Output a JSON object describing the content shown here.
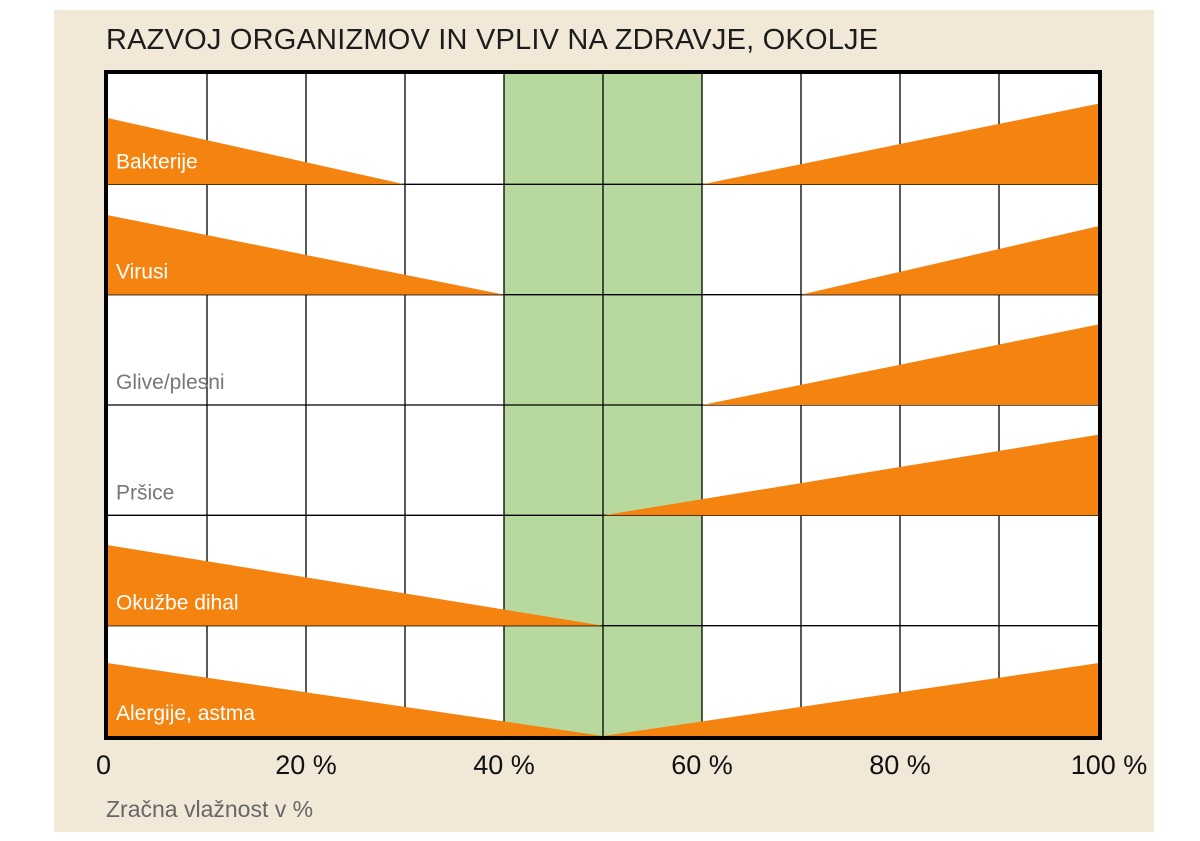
{
  "title": "RAZVOJ ORGANIZMOV IN VPLIV NA ZDRAVJE, OKOLJE",
  "xlabel": "Zračna vlažnost v %",
  "colors": {
    "background": "#f2e8d8",
    "optimal_zone": "#b7d99e",
    "impact": "#f5830f",
    "grid": "#000000",
    "label_on_orange": "#ffffff",
    "label_on_white": "#777777"
  },
  "chart_data": {
    "type": "area",
    "title": "RAZVOJ ORGANIZMOV IN VPLIV NA ZDRAVJE, OKOLJE",
    "xlabel": "Zračna vlažnost v %",
    "ylabel": "",
    "xlim": [
      0,
      100
    ],
    "x_ticks": [
      0,
      20,
      40,
      60,
      80,
      100
    ],
    "x_tick_labels": [
      "0",
      "20 %",
      "40 %",
      "60 %",
      "80 %",
      "100 %"
    ],
    "grid": true,
    "optimal_zone": [
      40,
      60
    ],
    "series": [
      {
        "name": "Bakterije",
        "label_on": "orange",
        "left": [
          [
            0,
            0.6
          ],
          [
            30,
            0
          ]
        ],
        "right": [
          [
            60,
            0
          ],
          [
            100,
            0.73
          ]
        ]
      },
      {
        "name": "Virusi",
        "label_on": "orange",
        "left": [
          [
            0,
            0.72
          ],
          [
            40,
            0
          ]
        ],
        "right": [
          [
            70,
            0
          ],
          [
            100,
            0.62
          ]
        ]
      },
      {
        "name": "Glive/plesni",
        "label_on": "white",
        "left": null,
        "right": [
          [
            60,
            0
          ],
          [
            100,
            0.73
          ]
        ]
      },
      {
        "name": "Pršice",
        "label_on": "white",
        "left": null,
        "right": [
          [
            50,
            0
          ],
          [
            100,
            0.73
          ]
        ]
      },
      {
        "name": "Okužbe dihal",
        "label_on": "orange",
        "left": [
          [
            0,
            0.73
          ],
          [
            50,
            0
          ]
        ],
        "right": null
      },
      {
        "name": "Alergije, astma",
        "label_on": "orange",
        "left": [
          [
            0,
            0.66
          ],
          [
            50,
            0
          ]
        ],
        "right": [
          [
            50,
            0
          ],
          [
            100,
            0.66
          ]
        ]
      }
    ]
  }
}
